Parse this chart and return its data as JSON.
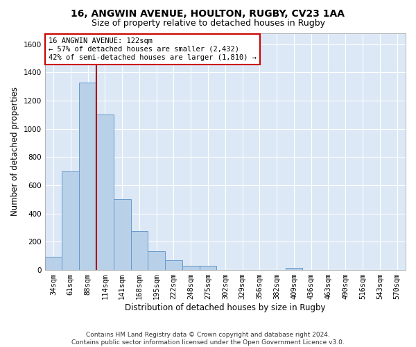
{
  "title1": "16, ANGWIN AVENUE, HOULTON, RUGBY, CV23 1AA",
  "title2": "Size of property relative to detached houses in Rugby",
  "xlabel": "Distribution of detached houses by size in Rugby",
  "ylabel": "Number of detached properties",
  "bar_labels": [
    "34sqm",
    "61sqm",
    "88sqm",
    "114sqm",
    "141sqm",
    "168sqm",
    "195sqm",
    "222sqm",
    "248sqm",
    "275sqm",
    "302sqm",
    "329sqm",
    "356sqm",
    "382sqm",
    "409sqm",
    "436sqm",
    "463sqm",
    "490sqm",
    "516sqm",
    "543sqm",
    "570sqm"
  ],
  "bar_values": [
    95,
    700,
    1330,
    1100,
    500,
    275,
    135,
    70,
    32,
    32,
    0,
    0,
    0,
    0,
    15,
    0,
    0,
    0,
    0,
    0,
    0
  ],
  "bar_color": "#b8d0e8",
  "bar_edge_color": "#6699cc",
  "bg_color": "#dce8f5",
  "grid_color": "#ffffff",
  "annotation_box_text": "16 ANGWIN AVENUE: 122sqm\n← 57% of detached houses are smaller (2,432)\n42% of semi-detached houses are larger (1,810) →",
  "vline_x": 2.5,
  "vline_color": "#aa0000",
  "ylim": [
    0,
    1680
  ],
  "yticks": [
    0,
    200,
    400,
    600,
    800,
    1000,
    1200,
    1400,
    1600
  ],
  "footnote": "Contains HM Land Registry data © Crown copyright and database right 2024.\nContains public sector information licensed under the Open Government Licence v3.0.",
  "title1_fontsize": 10,
  "title2_fontsize": 9,
  "xlabel_fontsize": 8.5,
  "ylabel_fontsize": 8.5,
  "tick_fontsize": 7.5,
  "annot_fontsize": 7.5,
  "footnote_fontsize": 6.5
}
